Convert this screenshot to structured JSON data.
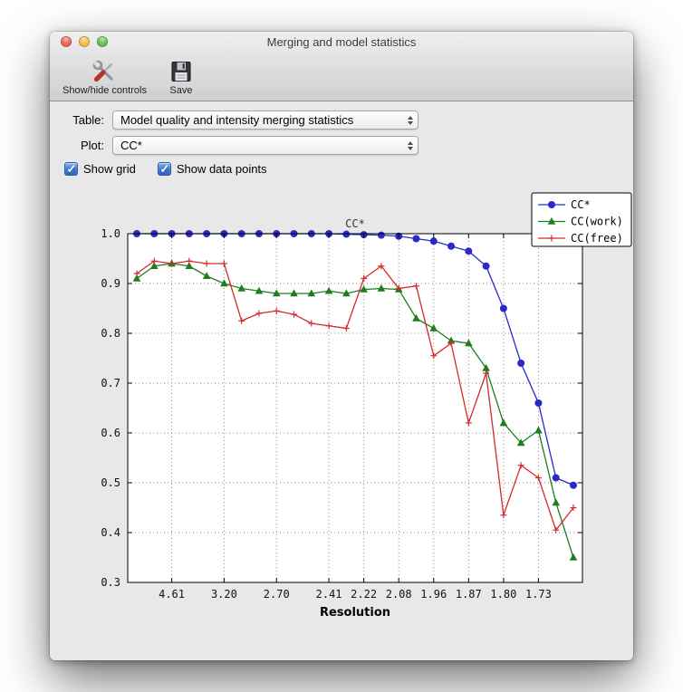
{
  "window": {
    "title": "Merging and model statistics",
    "traffic_lights": [
      {
        "name": "close",
        "color": "#ec6559"
      },
      {
        "name": "minimize",
        "color": "#f6bc48"
      },
      {
        "name": "zoom",
        "color": "#65c355"
      }
    ]
  },
  "toolbar": {
    "buttons": [
      {
        "label": "Show/hide controls",
        "icon": "tools-icon"
      },
      {
        "label": "Save",
        "icon": "save-icon"
      }
    ]
  },
  "controls": {
    "table_label": "Table:",
    "table_value": "Model quality and intensity merging statistics",
    "plot_label": "Plot:",
    "plot_value": "CC*",
    "checkboxes": [
      {
        "label": "Show grid",
        "checked": true
      },
      {
        "label": "Show data points",
        "checked": true
      }
    ]
  },
  "chart_data": {
    "type": "line",
    "title": "CC*",
    "xlabel": "Resolution",
    "ylabel": "",
    "ylim": [
      0.3,
      1.0
    ],
    "yticks": [
      0.3,
      0.4,
      0.5,
      0.6,
      0.7,
      0.8,
      0.9,
      1.0
    ],
    "xticks": {
      "labels": [
        "4.61",
        "3.20",
        "2.70",
        "2.41",
        "2.22",
        "2.08",
        "1.96",
        "1.87",
        "1.80",
        "1.73"
      ],
      "bins": [
        2,
        5,
        8,
        11,
        13,
        15,
        17,
        19,
        21,
        23
      ]
    },
    "grid": true,
    "legend_position": "upper right",
    "plot_bg": "#ffffff",
    "figure_bg": "#e8e8e8",
    "series": [
      {
        "name": "CC*",
        "color": "#2a2ac8",
        "marker": "circle",
        "values": [
          1.0,
          1.0,
          1.0,
          1.0,
          1.0,
          1.0,
          1.0,
          1.0,
          1.0,
          1.0,
          1.0,
          1.0,
          0.999,
          0.998,
          0.997,
          0.995,
          0.99,
          0.985,
          0.975,
          0.965,
          0.935,
          0.85,
          0.74,
          0.66,
          0.51,
          0.495
        ]
      },
      {
        "name": "CC(work)",
        "color": "#1e7d1e",
        "marker": "triangle",
        "values": [
          0.91,
          0.935,
          0.94,
          0.935,
          0.915,
          0.9,
          0.89,
          0.885,
          0.88,
          0.88,
          0.88,
          0.885,
          0.88,
          0.888,
          0.89,
          0.888,
          0.83,
          0.81,
          0.785,
          0.78,
          0.73,
          0.62,
          0.58,
          0.605,
          0.46,
          0.35
        ]
      },
      {
        "name": "CC(free)",
        "color": "#d42a2a",
        "marker": "plus",
        "values": [
          0.92,
          0.945,
          0.94,
          0.945,
          0.94,
          0.94,
          0.825,
          0.84,
          0.845,
          0.838,
          0.82,
          0.815,
          0.81,
          0.91,
          0.935,
          0.89,
          0.895,
          0.755,
          0.78,
          0.62,
          0.72,
          0.435,
          0.535,
          0.51,
          0.405,
          0.45
        ]
      }
    ]
  }
}
